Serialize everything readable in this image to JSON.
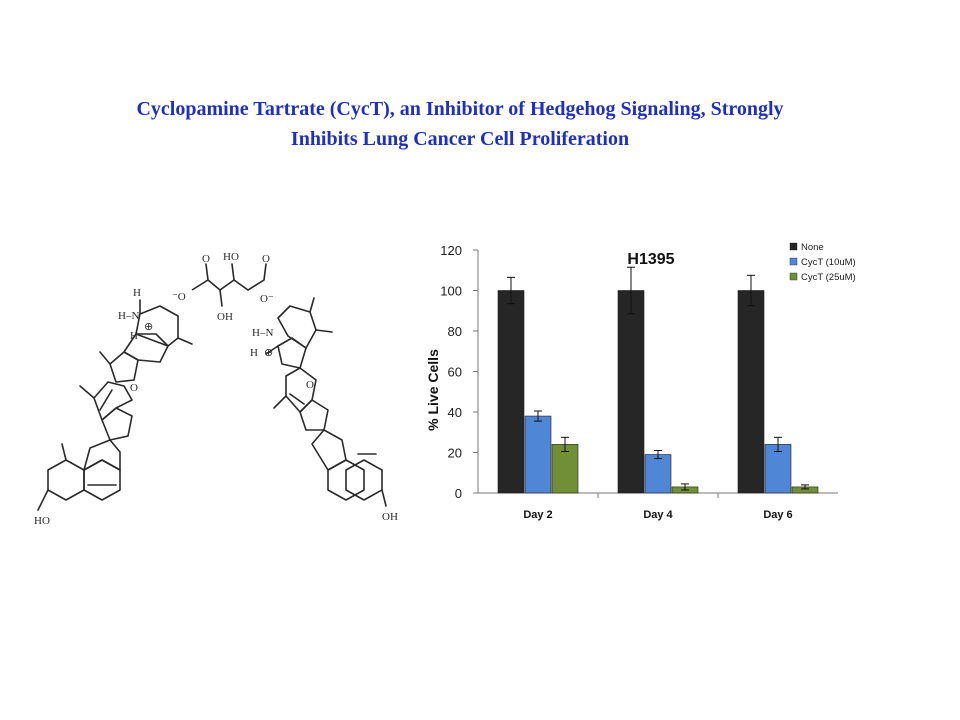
{
  "title": {
    "line1": "Cyclopamine Tartrate (CycT), an Inhibitor of Hedgehog Signaling, Strongly",
    "line2": "Inhibits Lung Cancer Cell Proliferation"
  },
  "structure": {
    "labels": {
      "ho_left": "HO",
      "oh_right": "OH",
      "h_top_left": "H",
      "h_n_left": "H–N",
      "o_left": "O",
      "h_left_2": "H",
      "n_h_right": "H–N",
      "h_right_2": "H",
      "o_right": "O",
      "tartrate_ho": "HO",
      "tartrate_oh": "OH",
      "tartrate_o1": "O",
      "tartrate_o2": "O",
      "tartrate_om1": "⁻O",
      "tartrate_om2": "O⁻",
      "plus": "⊕"
    }
  },
  "chart_data": {
    "type": "bar",
    "title": "H1395",
    "xlabel": "",
    "ylabel": "% Live Cells",
    "categories": [
      "Day 2",
      "Day 4",
      "Day 6"
    ],
    "ylim": [
      0,
      120
    ],
    "yticks": [
      0,
      20,
      40,
      60,
      80,
      100,
      120
    ],
    "grid": false,
    "legend": "top-right",
    "series": [
      {
        "name": "None",
        "color": "#262626",
        "values": [
          100,
          100,
          100
        ],
        "errors": [
          6.5,
          11.5,
          7.5
        ]
      },
      {
        "name": "CycT (10uM)",
        "color": "#4f86d6",
        "values": [
          38,
          19,
          24
        ],
        "errors": [
          2.5,
          2,
          3.5
        ]
      },
      {
        "name": "CycT (25uM)",
        "color": "#718f36",
        "values": [
          24,
          3,
          3
        ],
        "errors": [
          3.5,
          1.5,
          1
        ]
      }
    ]
  }
}
